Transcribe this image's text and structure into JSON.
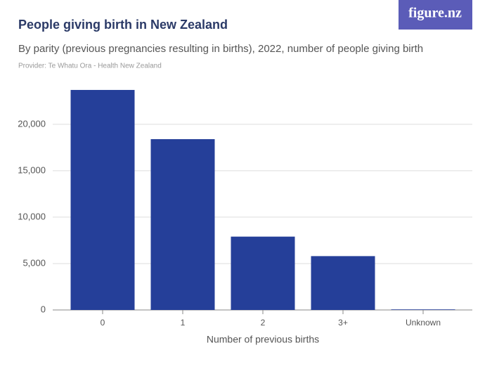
{
  "brand": "figure.nz",
  "chart_data": {
    "type": "bar",
    "title": "People giving birth in New Zealand",
    "subtitle": "By parity (previous pregnancies resulting in births), 2022, number of people giving birth",
    "provider": "Provider: Te Whatu Ora - Health New Zealand",
    "x_label": "Number of previous births",
    "categories": [
      "0",
      "1",
      "2",
      "3+",
      "Unknown"
    ],
    "values": [
      23700,
      18400,
      7900,
      5800,
      60
    ],
    "color": "#253f99",
    "ylim": [
      0,
      24000
    ],
    "yticks": [
      0,
      {
        "value": 5000,
        "label": "5,000"
      },
      {
        "value": 10000,
        "label": "10,000"
      },
      {
        "value": 15000,
        "label": "15,000"
      },
      {
        "value": 20000,
        "label": "20,000"
      }
    ],
    "grid": true
  }
}
